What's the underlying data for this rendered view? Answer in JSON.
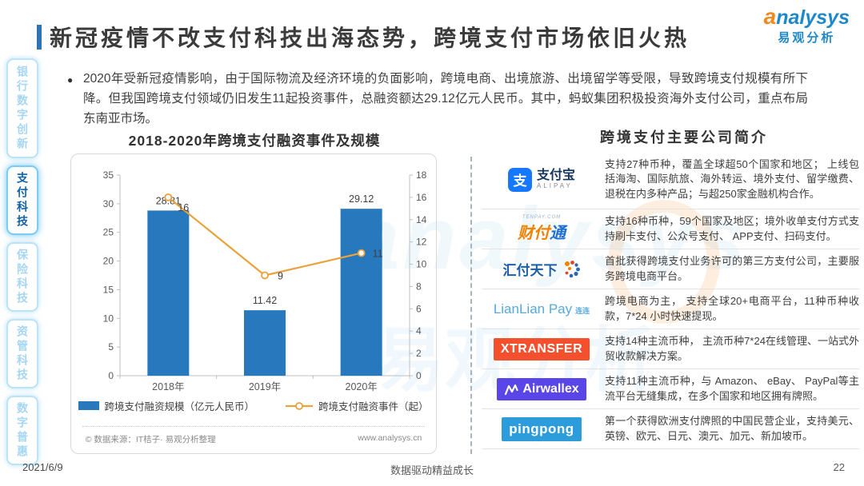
{
  "header": {
    "title": "新冠疫情不改支付科技出海态势，跨境支付市场依旧火热",
    "logo": {
      "a": "a",
      "rest": "nalysys",
      "cn": "易观分析"
    }
  },
  "sidebar": {
    "items": [
      {
        "label": "银行数字创新",
        "active": false
      },
      {
        "label": "支付科技",
        "active": true
      },
      {
        "label": "保险科技",
        "active": false
      },
      {
        "label": "资管科技",
        "active": false
      },
      {
        "label": "数字普惠",
        "active": false
      }
    ]
  },
  "bullet": {
    "marker": "●",
    "text": "2020年受新冠疫情影响，由于国际物流及经济环境的负面影响，跨境电商、出境旅游、出境留学等受限，导致跨境支付规模有所下降。但我国跨境支付领域仍旧发生11起投资事件，总融资额达29.12亿元人民币。其中，蚂蚁集团积极投资海外支付公司，重点布局东南亚市场。"
  },
  "chart_data": {
    "type": "bar",
    "title": "2018-2020年跨境支付融资事件及规模",
    "categories": [
      "2018年",
      "2019年",
      "2020年"
    ],
    "series": [
      {
        "name": "跨境支付融资规模（亿元人民币）",
        "type": "bar",
        "axis": "left",
        "values": [
          28.81,
          11.42,
          29.12
        ],
        "color": "#2878BE"
      },
      {
        "name": "跨境支付融资事件（起）",
        "type": "line",
        "axis": "right",
        "values": [
          16,
          9,
          11
        ],
        "color": "#E8A33D"
      }
    ],
    "left_axis": {
      "min": 0,
      "max": 35,
      "step": 5
    },
    "right_axis": {
      "min": 0,
      "max": 18,
      "step": 2
    },
    "grid": false,
    "legend_position": "bottom",
    "source": "© 数据来源：IT桔子· 易观分析整理",
    "site": "www.analysys.cn"
  },
  "companies": {
    "title": "跨境支付主要公司简介",
    "rows": [
      {
        "name": "支付宝 ALIPAY",
        "logo": {
          "icon_char": "支",
          "cn": "支付宝",
          "en": "ALIPAY"
        },
        "desc": "支持27种币种，覆盖全球超50个国家和地区； 上线包括海淘、国际航旅、海外转运、境外支付、留学缴费、退税在内多种产品；与超250家金融机构合作。"
      },
      {
        "name": "财付通",
        "logo": {
          "top": "TENPAY.COM",
          "c1": "财",
          "c2": "付",
          "c3": "通"
        },
        "desc": "支持16种币种，59个国家及地区；境外收单支付方式支持刷卡支付、公众号支付、 APP支付、扫码支付。"
      },
      {
        "name": "汇付天下",
        "logo": {
          "cn": "汇付天下"
        },
        "desc": "首批获得跨境支付业务许可的第三方支付公司，主要服务跨境电商平台。"
      },
      {
        "name": "连连支付 LianLian Pay",
        "logo": {
          "en": "LianLian Pay",
          "cn": "连连"
        },
        "desc": "跨境电商为主， 支持全球20+电商平台，11种币种收款，7*24 小时快速提现。"
      },
      {
        "name": "XTRANSFER",
        "logo": {
          "en": "XTRANSFER"
        },
        "desc": "支持14种主流币种， 主流币种7*24在线管理、一站式外贸收款解决方案。"
      },
      {
        "name": "Airwallex",
        "logo": {
          "en": "Airwallex"
        },
        "desc": "支持11种主流币种，与 Amazon、 eBay、 PayPal等主流平台无缝集成，在多个国家和地区拥有牌照。"
      },
      {
        "name": "PingPong",
        "logo": {
          "en": "pingpong"
        },
        "desc": "第一个获得欧洲支付牌照的中国民营企业，支持美元、英镑、欧元、日元、澳元、加元、新加坡币。"
      }
    ]
  },
  "watermark": {
    "en": "analysys",
    "cn": "易观分析"
  },
  "footer": {
    "date": "2021/6/9",
    "slogan": "数据驱动精益成长",
    "page_number": "22"
  }
}
